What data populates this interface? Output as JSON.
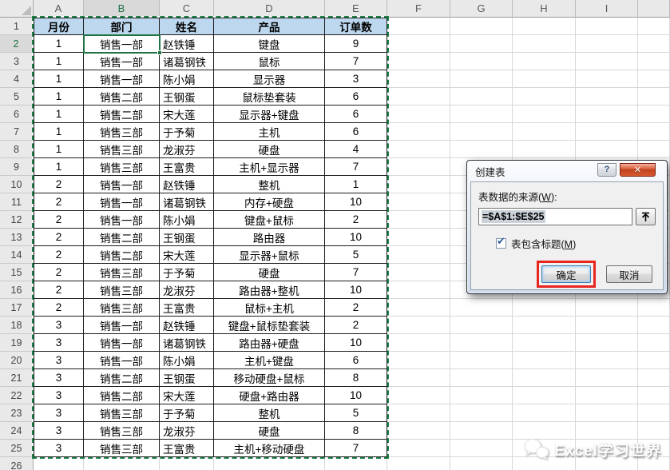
{
  "sheet": {
    "column_letters": [
      "A",
      "B",
      "C",
      "D",
      "E",
      "F",
      "G",
      "H",
      "I"
    ],
    "active_column": "B",
    "active_row": 2,
    "active_cell": "B2",
    "visible_row_count": 26,
    "selection_range": "A1:E25",
    "table": {
      "headers": [
        "月份",
        "部门",
        "姓名",
        "产品",
        "订单数"
      ],
      "rows": [
        [
          1,
          "销售一部",
          "赵铁锤",
          "键盘",
          9
        ],
        [
          1,
          "销售一部",
          "诸葛钢铁",
          "鼠标",
          7
        ],
        [
          1,
          "销售一部",
          "陈小娟",
          "显示器",
          3
        ],
        [
          1,
          "销售二部",
          "王钢蛋",
          "鼠标垫套装",
          6
        ],
        [
          1,
          "销售二部",
          "宋大莲",
          "显示器+键盘",
          6
        ],
        [
          1,
          "销售三部",
          "于予菊",
          "主机",
          6
        ],
        [
          1,
          "销售三部",
          "龙淑芬",
          "硬盘",
          4
        ],
        [
          1,
          "销售三部",
          "王富贵",
          "主机+显示器",
          7
        ],
        [
          2,
          "销售一部",
          "赵铁锤",
          "整机",
          1
        ],
        [
          2,
          "销售一部",
          "诸葛钢铁",
          "内存+硬盘",
          10
        ],
        [
          2,
          "销售一部",
          "陈小娟",
          "键盘+鼠标",
          2
        ],
        [
          2,
          "销售二部",
          "王钢蛋",
          "路由器",
          10
        ],
        [
          2,
          "销售二部",
          "宋大莲",
          "显示器+鼠标",
          5
        ],
        [
          2,
          "销售三部",
          "于予菊",
          "硬盘",
          7
        ],
        [
          2,
          "销售三部",
          "龙淑芬",
          "路由器+整机",
          10
        ],
        [
          2,
          "销售三部",
          "王富贵",
          "鼠标+主机",
          2
        ],
        [
          3,
          "销售一部",
          "赵铁锤",
          "键盘+鼠标垫套装",
          2
        ],
        [
          3,
          "销售一部",
          "诸葛钢铁",
          "路由器+硬盘",
          10
        ],
        [
          3,
          "销售一部",
          "陈小娟",
          "主机+键盘",
          6
        ],
        [
          3,
          "销售二部",
          "王钢蛋",
          "移动硬盘+鼠标",
          8
        ],
        [
          3,
          "销售二部",
          "宋大莲",
          "硬盘+路由器",
          10
        ],
        [
          3,
          "销售三部",
          "于予菊",
          "整机",
          5
        ],
        [
          3,
          "销售三部",
          "龙淑芬",
          "硬盘",
          8
        ],
        [
          3,
          "销售三部",
          "王富贵",
          "主机+移动硬盘",
          7
        ]
      ]
    }
  },
  "dialog": {
    "title": "创建表",
    "help_glyph": "?",
    "close_glyph": "✕",
    "source_label": {
      "pre": "表数据的来源(",
      "key": "W",
      "post": "):"
    },
    "range_value": "=$A$1:$E$25",
    "checkbox": {
      "checked": true,
      "check_glyph": "✔",
      "label": {
        "pre": "表包含标题(",
        "key": "M",
        "post": ")"
      }
    },
    "ok_label": "确定",
    "cancel_label": "取消"
  },
  "watermark": {
    "text": "Excel学习世界"
  },
  "colors": {
    "table_header_fill": "#bdd7ee",
    "table_border": "#1c1c1c",
    "excel_green": "#217346",
    "selection_ants_green": "#1d8248",
    "annotation_red": "#e8251f",
    "close_button_red": "#c0431f",
    "gridline": "#d8d8d8"
  }
}
